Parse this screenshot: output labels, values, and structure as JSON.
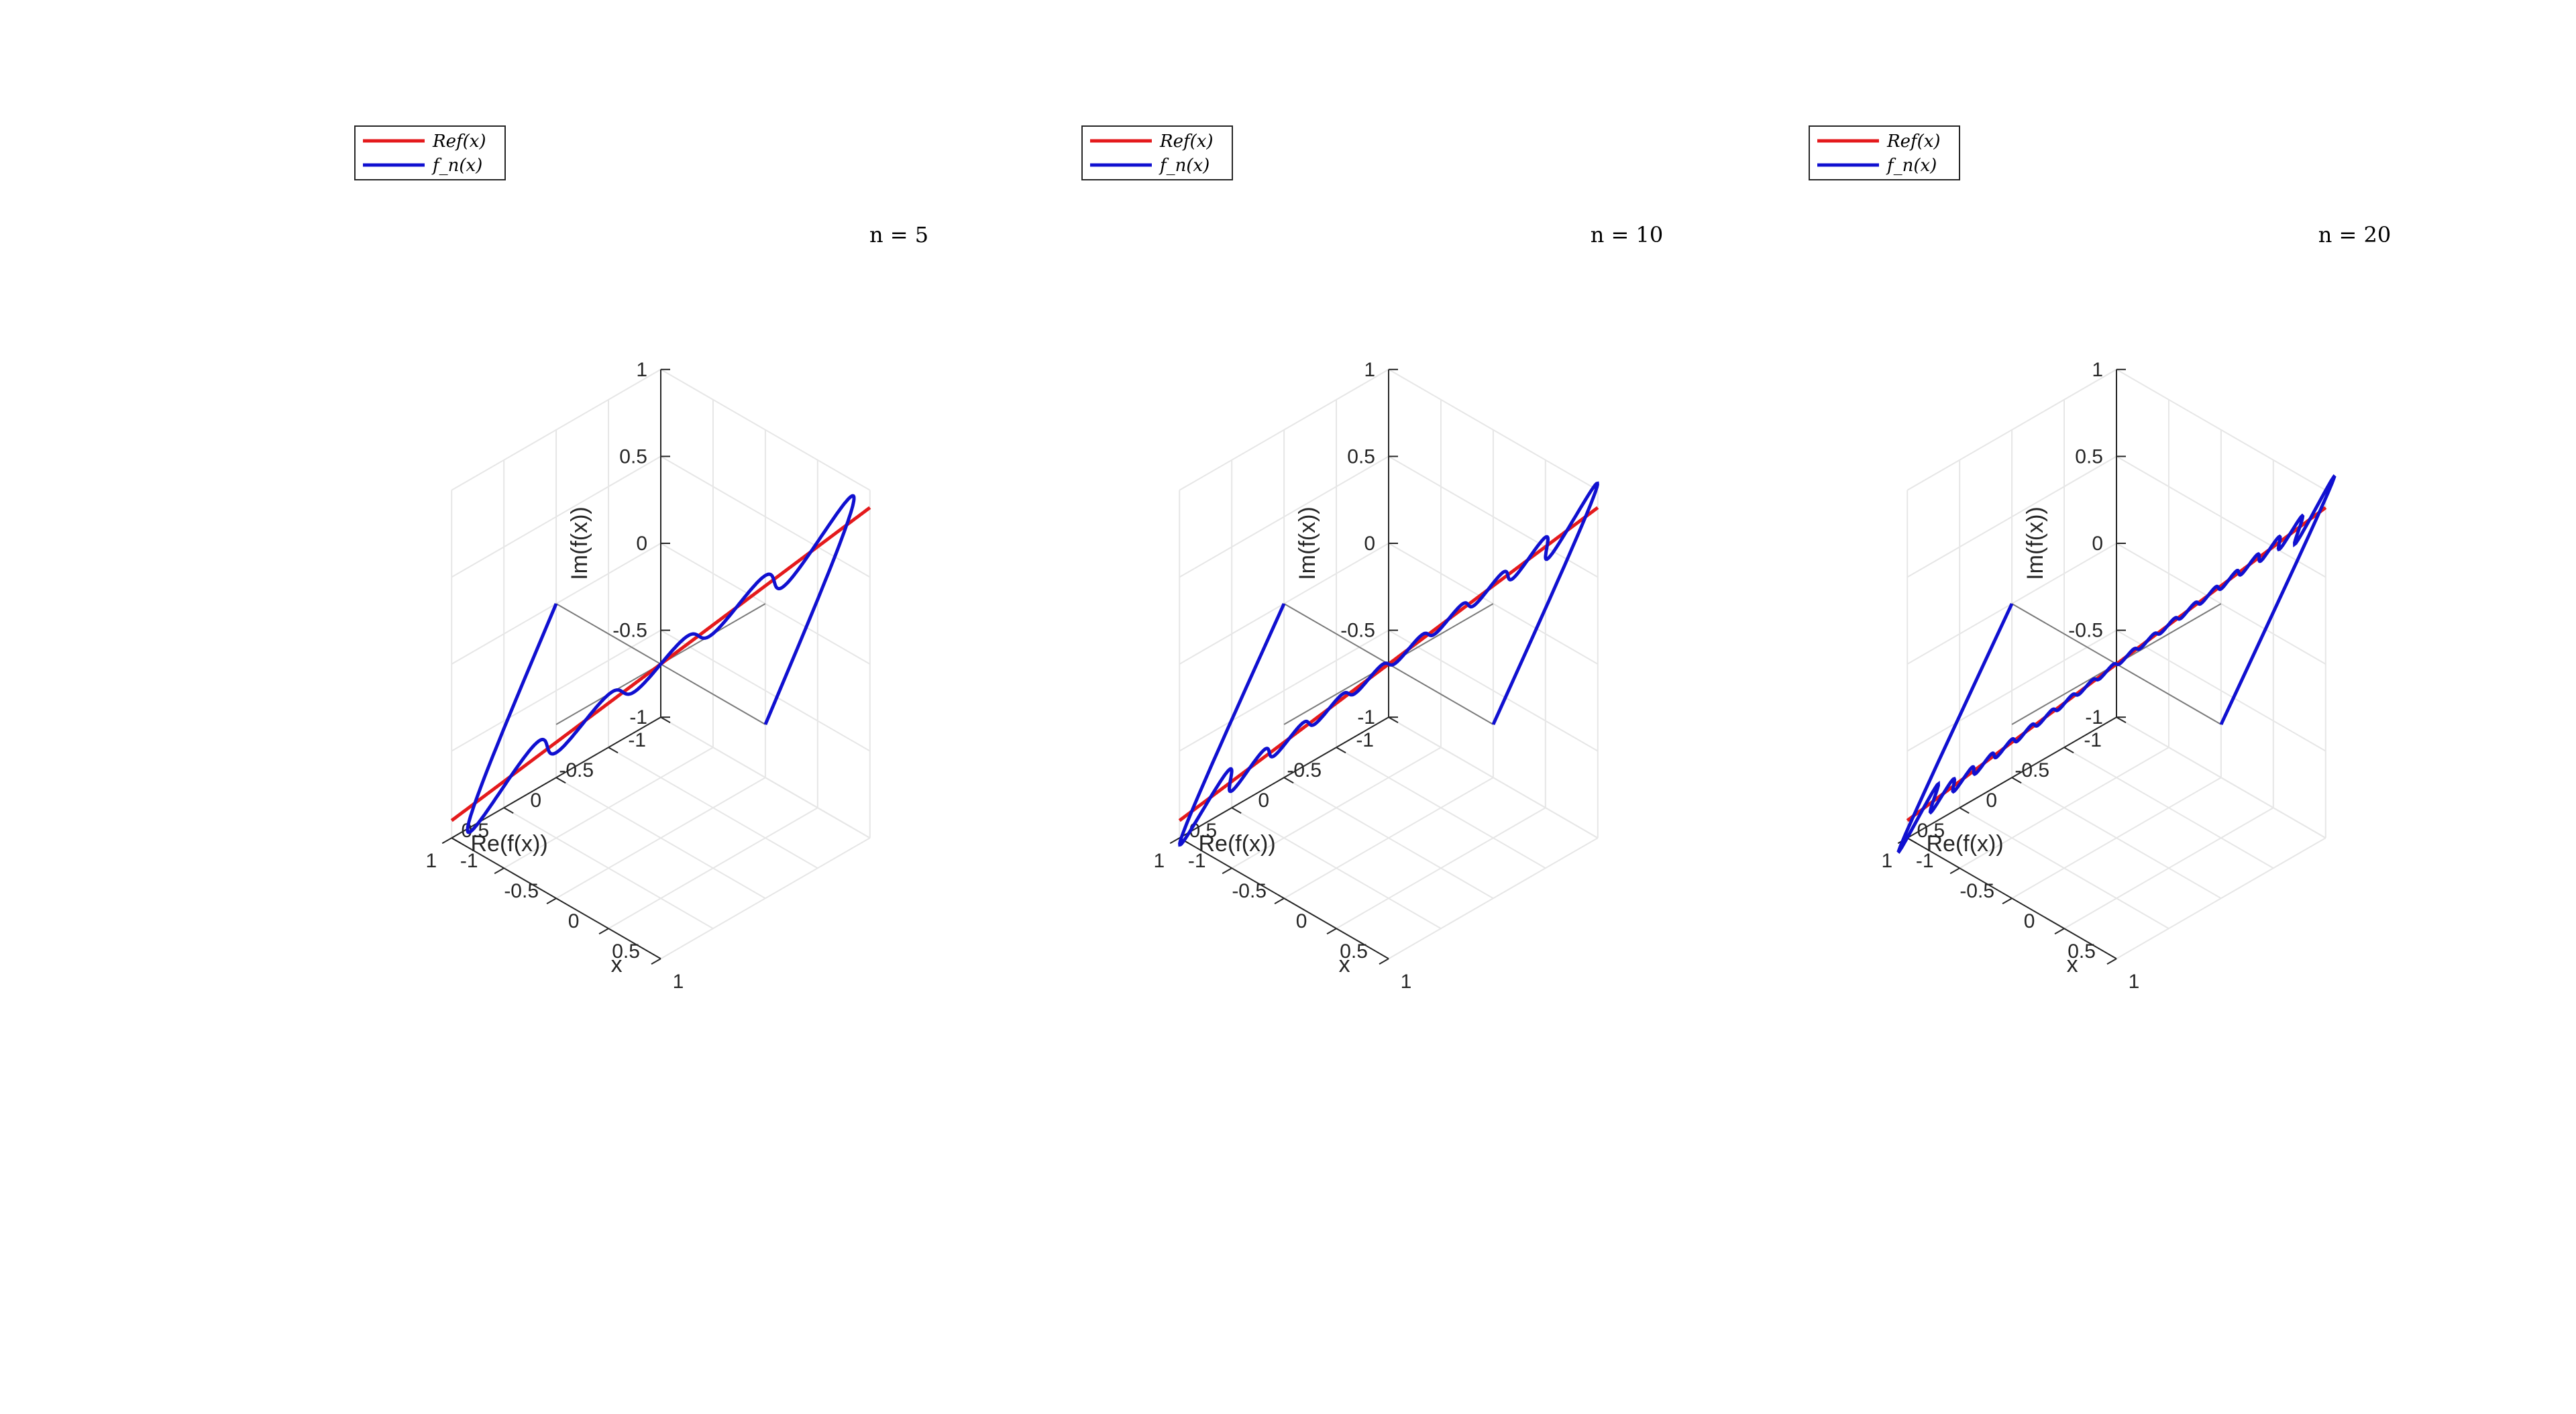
{
  "chart_data": [
    {
      "type": "line",
      "title": "n = 5",
      "n": 5,
      "xlabel": "x",
      "ylabel": "Re(f(x))",
      "zlabel": "Im(f(x))",
      "xlim": [
        -1,
        1
      ],
      "ylim": [
        -1,
        1
      ],
      "zlim": [
        -1,
        1
      ],
      "xticks": [
        "-1",
        "-0.5",
        "0",
        "0.5",
        "1"
      ],
      "yticks": [
        "-1",
        "-0.5",
        "0",
        "0.5",
        "1"
      ],
      "zticks": [
        "-1",
        "-0.5",
        "0",
        "0.5",
        "1"
      ],
      "grid": true,
      "legend_position": "top-left",
      "series": [
        {
          "name": "Ref(x)",
          "color": "#e41a1c"
        },
        {
          "name": "f_n(x)",
          "color": "#1010d0"
        }
      ]
    },
    {
      "type": "line",
      "title": "n = 10",
      "n": 10,
      "xlabel": "x",
      "ylabel": "Re(f(x))",
      "zlabel": "Im(f(x))",
      "xlim": [
        -1,
        1
      ],
      "ylim": [
        -1,
        1
      ],
      "zlim": [
        -1,
        1
      ],
      "xticks": [
        "-1",
        "-0.5",
        "0",
        "0.5",
        "1"
      ],
      "yticks": [
        "-1",
        "-0.5",
        "0",
        "0.5",
        "1"
      ],
      "zticks": [
        "-1",
        "-0.5",
        "0",
        "0.5",
        "1"
      ],
      "grid": true,
      "legend_position": "top-left",
      "series": [
        {
          "name": "Ref(x)",
          "color": "#e41a1c"
        },
        {
          "name": "f_n(x)",
          "color": "#1010d0"
        }
      ]
    },
    {
      "type": "line",
      "title": "n = 20",
      "n": 20,
      "xlabel": "x",
      "ylabel": "Re(f(x))",
      "zlabel": "Im(f(x))",
      "xlim": [
        -1,
        1
      ],
      "ylim": [
        -1,
        1
      ],
      "zlim": [
        -1,
        1
      ],
      "xticks": [
        "-1",
        "-0.5",
        "0",
        "0.5",
        "1"
      ],
      "yticks": [
        "-1",
        "-0.5",
        "0",
        "0.5",
        "1"
      ],
      "zticks": [
        "-1",
        "-0.5",
        "0",
        "0.5",
        "1"
      ],
      "grid": true,
      "legend_position": "top-left",
      "series": [
        {
          "name": "Ref(x)",
          "color": "#e41a1c"
        },
        {
          "name": "f_n(x)",
          "color": "#1010d0"
        }
      ]
    }
  ]
}
